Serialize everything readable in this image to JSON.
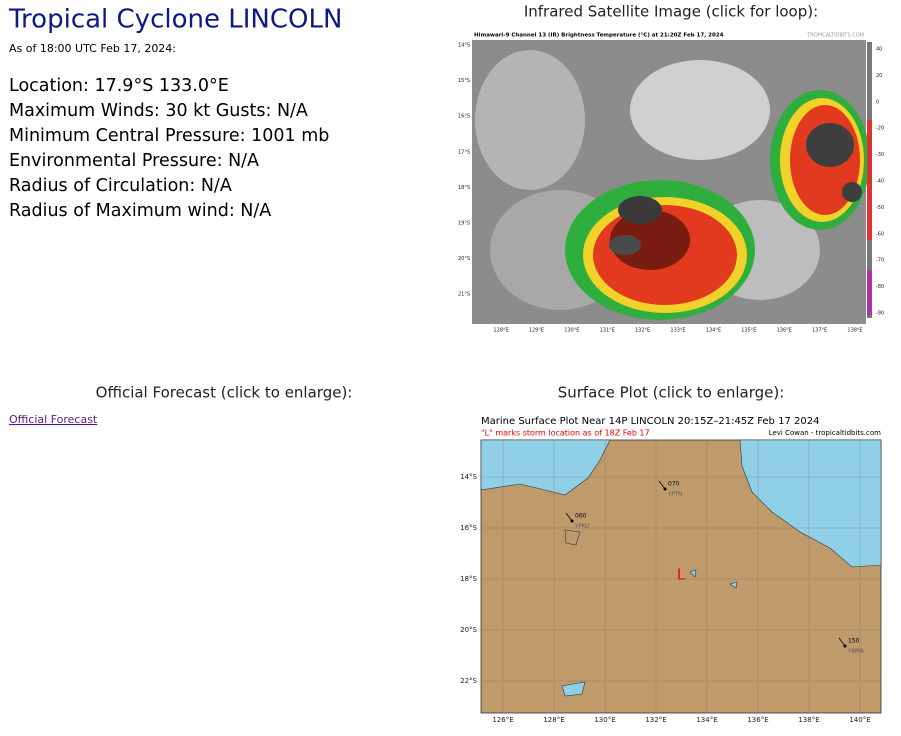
{
  "title": "Tropical Cyclone LINCOLN",
  "as_of": "As of 18:00 UTC Feb 17, 2024:",
  "details": [
    "Location: 17.9°S 133.0°E",
    "Maximum Winds: 30 kt  Gusts: N/A",
    "Minimum Central Pressure: 1001 mb",
    "Environmental Pressure: N/A",
    "Radius of Circulation: N/A",
    "Radius of Maximum wind: N/A"
  ],
  "satellite": {
    "caption": "Infrared Satellite Image (click for loop):",
    "image_title": "Himawari-9 Channel 13 (IR) Brightness Temperature (°C) at 21:20Z Feb 17, 2024",
    "credit": "TROPICALTIDBITS.COM",
    "lat_labels": [
      "14°S",
      "15°S",
      "16°S",
      "17°S",
      "18°S",
      "19°S",
      "20°S",
      "21°S"
    ],
    "lon_labels": [
      "128°E",
      "129°E",
      "130°E",
      "131°E",
      "132°E",
      "133°E",
      "134°E",
      "135°E",
      "136°E",
      "137°E",
      "138°E"
    ],
    "colorbar_labels": [
      "40",
      "20",
      "0",
      "-20",
      "-30",
      "-40",
      "-50",
      "-60",
      "-70",
      "-80",
      "-90"
    ]
  },
  "forecast": {
    "caption": "Official Forecast (click to enlarge):",
    "link": "Official Forecast"
  },
  "surface": {
    "caption": "Surface Plot (click to enlarge):",
    "image_title": "Marine Surface Plot Near 14P LINCOLN 20:15Z–21:45Z Feb 17 2024",
    "subtitle": "\"L\" marks storm location as of 18Z Feb 17",
    "credit": "Levi Cowan - tropicaltidbits.com",
    "lat_labels": [
      "14°S",
      "16°S",
      "18°S",
      "20°S",
      "22°S"
    ],
    "lon_labels": [
      "126°E",
      "128°E",
      "130°E",
      "132°E",
      "134°E",
      "136°E",
      "138°E",
      "140°E"
    ],
    "storm_marker": "L",
    "stations": [
      {
        "value": "070",
        "id": "YPTN"
      },
      {
        "value": "060",
        "id": "YPKU"
      },
      {
        "value": "150",
        "id": "YBMA"
      }
    ]
  }
}
